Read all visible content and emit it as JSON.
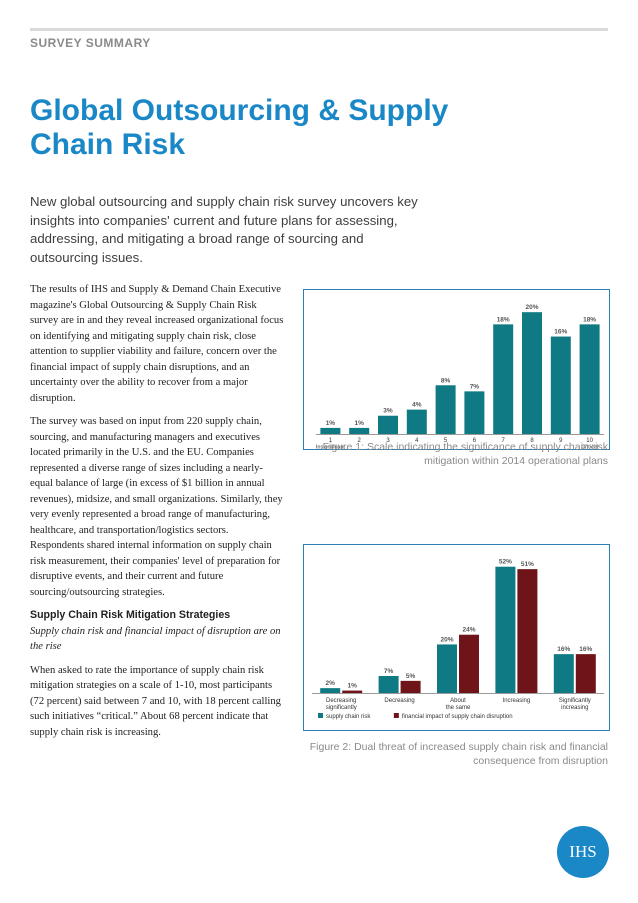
{
  "header": {
    "kicker": "SURVEY SUMMARY"
  },
  "title": "Global Outsourcing & Supply Chain Risk",
  "lede": "New global outsourcing and supply chain risk survey uncovers key insights into companies' current and future plans for assessing, addressing, and mitigating a broad range of sourcing and outsourcing issues.",
  "body": {
    "p1": "The results of IHS and Supply & Demand Chain Executive magazine's Global Outsourcing & Supply Chain Risk survey are in and they reveal increased organizational focus on identifying and mitigating supply chain risk, close attention to supplier viability and failure, concern over the financial impact of supply chain disruptions, and an uncertainty over the ability to recover from a major disruption.",
    "p2": "The survey was based on input from 220 supply chain, sourcing, and manufacturing managers and executives located primarily in the U.S. and the EU. Companies represented a diverse range of sizes including a nearly-equal balance of large (in excess of $1 billion in annual revenues), midsize, and small organizations. Similarly, they very evenly represented a broad range of manufacturing, healthcare, and transportation/logistics sectors. Respondents shared internal information on supply chain risk measurement, their companies' level of preparation for disruptive events, and their current and future sourcing/outsourcing strategies.",
    "heading": "Supply Chain Risk Mitigation Strategies",
    "subheading": "Supply chain risk and financial impact of disruption are on the rise",
    "p3": "When asked to rate the importance of supply chain risk mitigation strategies on a scale of 1-10, most participants (72 percent) said between 7 and 10, with 18 percent calling such initiatives “critical.” About 68 percent indicate that supply chain risk is increasing."
  },
  "figure1": {
    "caption": "Figure 1:  Scale indicating the significance of supply chain risk mitigation within 2014 operational plans"
  },
  "figure2": {
    "caption": "Figure 2:  Dual threat of increased supply chain risk and financial consequence from disruption"
  },
  "logo": {
    "text": "IHS"
  },
  "colors": {
    "accent": "#1a87c7",
    "teal": "#0f7a83",
    "maroon": "#6f1418"
  },
  "chart_data": [
    {
      "type": "bar",
      "categories": [
        "1",
        "2",
        "3",
        "4",
        "5",
        "6",
        "7",
        "8",
        "9",
        "10"
      ],
      "category_sublabels": [
        "Insignificant",
        "",
        "",
        "",
        "",
        "",
        "",
        "",
        "",
        "Critical"
      ],
      "value_labels": [
        "1%",
        "1%",
        "3%",
        "4%",
        "8%",
        "7%",
        "18%",
        "20%",
        "16%",
        "18%"
      ],
      "values": [
        1,
        1,
        3,
        4,
        8,
        7,
        18,
        20,
        16,
        18
      ],
      "ylim": [
        0,
        22
      ],
      "grid": false,
      "color": "#0f7a83"
    },
    {
      "type": "bar",
      "categories": [
        "Decreasing significantly",
        "Decreasing",
        "About the same",
        "Increasing",
        "Significantly increasing"
      ],
      "series": [
        {
          "name": "supply chain risk",
          "values": [
            2,
            7,
            20,
            52,
            16
          ],
          "value_labels": [
            "2%",
            "7%",
            "20%",
            "52%",
            "16%"
          ],
          "color": "#0f7a83"
        },
        {
          "name": "financial impact of supply chain disruption",
          "values": [
            1,
            5,
            24,
            51,
            16
          ],
          "value_labels": [
            "1%",
            "5%",
            "24%",
            "51%",
            "16%"
          ],
          "color": "#6f1418"
        }
      ],
      "legend": "bottom-left",
      "ylim": [
        0,
        56
      ],
      "grid": false
    }
  ]
}
